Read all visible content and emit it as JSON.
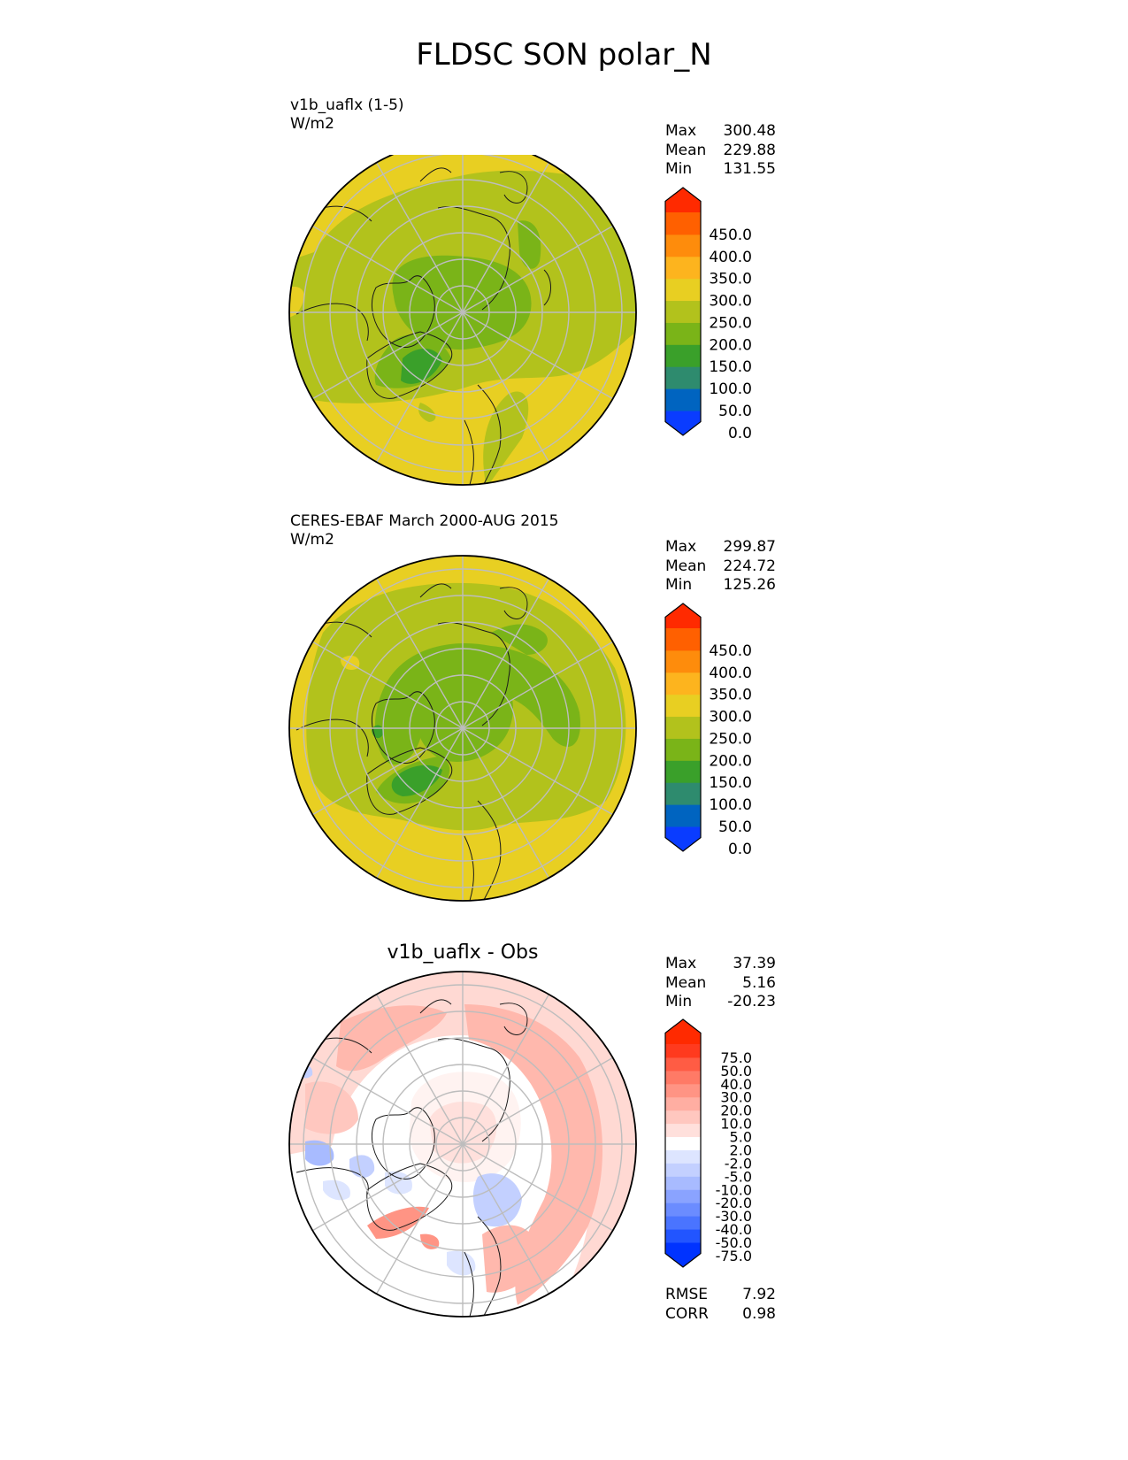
{
  "page": {
    "title": "FLDSC SON polar_N"
  },
  "panels": [
    {
      "title": "v1b_uaflx (1-5)",
      "units": "W/m2",
      "stats": [
        {
          "label": "Max",
          "value": "300.48"
        },
        {
          "label": "Mean",
          "value": "229.88"
        },
        {
          "label": "Min",
          "value": "131.55"
        }
      ]
    },
    {
      "title": "CERES-EBAF March 2000-AUG 2015",
      "units": "W/m2",
      "stats": [
        {
          "label": "Max",
          "value": "299.87"
        },
        {
          "label": "Mean",
          "value": "224.72"
        },
        {
          "label": "Min",
          "value": "125.26"
        }
      ]
    },
    {
      "title": "v1b_uaflx - Obs",
      "units": "",
      "stats": [
        {
          "label": "Max",
          "value": "37.39"
        },
        {
          "label": "Mean",
          "value": "5.16"
        },
        {
          "label": "Min",
          "value": "-20.23"
        }
      ],
      "footer": [
        {
          "label": "RMSE",
          "value": "7.92"
        },
        {
          "label": "CORR",
          "value": "0.98"
        }
      ]
    }
  ],
  "chart_data": [
    {
      "type": "heatmap",
      "projection": "north-polar-stereographic",
      "title": "v1b_uaflx (1-5)",
      "units": "W/m2",
      "stats": {
        "max": 300.48,
        "mean": 229.88,
        "min": 131.55
      },
      "colorbar": {
        "levels": [
          0,
          50,
          100,
          150,
          200,
          250,
          300,
          350,
          400,
          450
        ],
        "tick_labels": [
          "450.0",
          "400.0",
          "350.0",
          "300.0",
          "250.0",
          "200.0",
          "150.0",
          "100.0",
          "50.0",
          "0.0"
        ],
        "colors": [
          "#0a3cff",
          "#0064c0",
          "#2e8b6e",
          "#3aa02a",
          "#7ab418",
          "#b2c21c",
          "#e8cf22",
          "#fdb41e",
          "#fe8c0c",
          "#ff6000",
          "#ff2a00"
        ]
      }
    },
    {
      "type": "heatmap",
      "projection": "north-polar-stereographic",
      "title": "CERES-EBAF March 2000-AUG 2015",
      "units": "W/m2",
      "stats": {
        "max": 299.87,
        "mean": 224.72,
        "min": 125.26
      },
      "colorbar": {
        "levels": [
          0,
          50,
          100,
          150,
          200,
          250,
          300,
          350,
          400,
          450
        ],
        "tick_labels": [
          "450.0",
          "400.0",
          "350.0",
          "300.0",
          "250.0",
          "200.0",
          "150.0",
          "100.0",
          "50.0",
          "0.0"
        ],
        "colors": [
          "#0a3cff",
          "#0064c0",
          "#2e8b6e",
          "#3aa02a",
          "#7ab418",
          "#b2c21c",
          "#e8cf22",
          "#fdb41e",
          "#fe8c0c",
          "#ff6000",
          "#ff2a00"
        ]
      }
    },
    {
      "type": "heatmap",
      "projection": "north-polar-stereographic",
      "title": "v1b_uaflx - Obs",
      "stats": {
        "max": 37.39,
        "mean": 5.16,
        "min": -20.23,
        "rmse": 7.92,
        "corr": 0.98
      },
      "colorbar": {
        "levels": [
          -75,
          -50,
          -40,
          -30,
          -20,
          -10,
          -5,
          -2,
          2,
          5,
          10,
          20,
          30,
          40,
          50,
          75
        ],
        "tick_labels": [
          "75.0",
          "50.0",
          "40.0",
          "30.0",
          "20.0",
          "10.0",
          "5.0",
          "2.0",
          "-2.0",
          "-5.0",
          "-10.0",
          "-20.0",
          "-30.0",
          "-40.0",
          "-50.0",
          "-75.0"
        ],
        "colors": [
          "#0033ff",
          "#2255ff",
          "#4a74ff",
          "#6b8cff",
          "#8aa3ff",
          "#a8bbff",
          "#c3d0ff",
          "#dde5ff",
          "#ffffff",
          "#ffe0dc",
          "#ffc7bf",
          "#ffaea2",
          "#ff9484",
          "#ff7a66",
          "#ff5c44",
          "#ff3a1e",
          "#ff2a00"
        ]
      }
    }
  ]
}
